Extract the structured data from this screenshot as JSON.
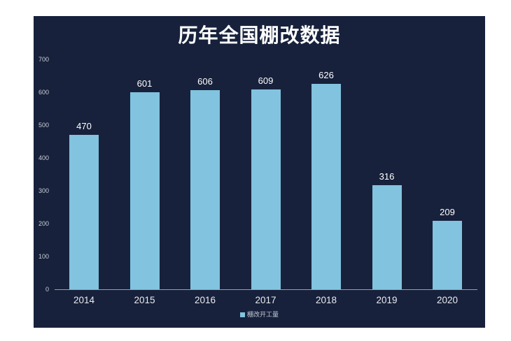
{
  "chart": {
    "title": "历年全国棚改数据"
  },
  "chart_data": {
    "type": "bar",
    "title": "历年全国棚改数据",
    "categories": [
      "2014",
      "2015",
      "2016",
      "2017",
      "2018",
      "2019",
      "2020"
    ],
    "series": [
      {
        "name": "棚改开工量",
        "values": [
          470,
          601,
          606,
          609,
          626,
          316,
          209
        ]
      }
    ],
    "xlabel": "",
    "ylabel": "",
    "ylim": [
      0,
      700
    ],
    "yticks": [
      0,
      100,
      200,
      300,
      400,
      500,
      600,
      700
    ],
    "grid": false,
    "legend_position": "bottom",
    "data_labels": true
  },
  "colors": {
    "page_background": "#FFFFFF",
    "panel_background": "#17213B",
    "bar": "#82C3DF",
    "title_text": "#FFFFFF",
    "data_label_text": "#FFFFFF",
    "y_axis_label_text": "#C9CDD6",
    "x_axis_label_text": "#E9EBF0",
    "axis_line": "#9AA0AC",
    "legend_text": "#C5CAD3"
  }
}
